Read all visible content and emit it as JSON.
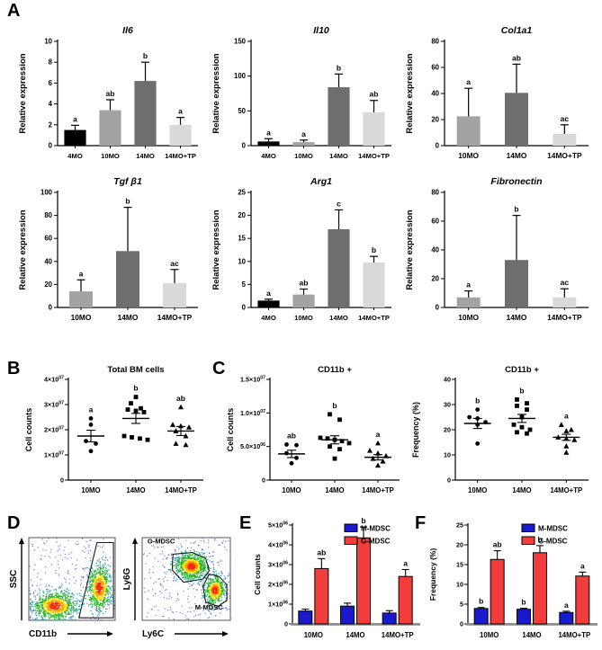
{
  "figure": {
    "panel_labels": [
      "A",
      "B",
      "C",
      "D",
      "E",
      "F"
    ],
    "background": "#ffffff"
  },
  "colors": {
    "bar_black": "#000000",
    "bar_gray": "#a3a3a3",
    "bar_dark": "#6e6e6e",
    "bar_light": "#d9d9d9",
    "mdsc_blue": "#1a1acd",
    "mdsc_red": "#f23d3d",
    "axis": "#000000",
    "baseline_gray": "#8f8f8f"
  },
  "chart_data": [
    {
      "id": "il6",
      "panel": "A",
      "type": "bar",
      "title": "Il6",
      "title_italic": true,
      "ylabel": "Relative expression",
      "categories": [
        "4MO",
        "10MO",
        "14MO",
        "14MO+TP"
      ],
      "values": [
        1.5,
        3.4,
        6.2,
        2.0
      ],
      "errors": [
        0.45,
        1.0,
        1.8,
        0.7
      ],
      "letters": [
        "a",
        "ab",
        "b",
        "a"
      ],
      "ylim": [
        0,
        10
      ],
      "yticks": [
        0,
        2,
        4,
        6,
        8,
        10
      ],
      "bar_colors": [
        "#000000",
        "#a3a3a3",
        "#6e6e6e",
        "#d9d9d9"
      ]
    },
    {
      "id": "il10",
      "panel": "A",
      "type": "bar",
      "title": "Il10",
      "title_italic": true,
      "ylabel": "Relative expression",
      "categories": [
        "4MO",
        "10MO",
        "14MO",
        "14MO+TP"
      ],
      "values": [
        6,
        5,
        84,
        48
      ],
      "errors": [
        4,
        3,
        19,
        17
      ],
      "letters": [
        "a",
        "a",
        "b",
        "ab"
      ],
      "ylim": [
        0,
        150
      ],
      "yticks": [
        0,
        50,
        100,
        150
      ],
      "bar_colors": [
        "#000000",
        "#a3a3a3",
        "#6e6e6e",
        "#d9d9d9"
      ]
    },
    {
      "id": "col1a1",
      "panel": "A",
      "type": "bar",
      "title": "Col1a1",
      "title_italic": true,
      "ylabel": "Relative expression",
      "categories": [
        "10MO",
        "14MO",
        "14MO+TP"
      ],
      "values": [
        22.5,
        40.5,
        9
      ],
      "errors": [
        21.5,
        22,
        7
      ],
      "letters": [
        "a",
        "ab",
        "ac"
      ],
      "ylim": [
        0,
        80
      ],
      "yticks": [
        0,
        20,
        40,
        60,
        80
      ],
      "bar_colors": [
        "#a3a3a3",
        "#6e6e6e",
        "#d9d9d9"
      ]
    },
    {
      "id": "tgfb1",
      "panel": "A",
      "type": "bar",
      "title": "Tgf β1",
      "title_italic": true,
      "ylabel": "Relative expression",
      "categories": [
        "10MO",
        "14MO",
        "14MO+TP"
      ],
      "values": [
        14,
        49,
        21
      ],
      "errors": [
        10,
        38,
        12
      ],
      "letters": [
        "a",
        "b",
        "ac"
      ],
      "ylim": [
        0,
        100
      ],
      "yticks": [
        0,
        20,
        40,
        60,
        80,
        100
      ],
      "bar_colors": [
        "#a3a3a3",
        "#6e6e6e",
        "#d9d9d9"
      ]
    },
    {
      "id": "arg1",
      "panel": "A",
      "type": "bar",
      "title": "Arg1",
      "title_italic": true,
      "ylabel": "Relative expression",
      "categories": [
        "4MO",
        "10MO",
        "14MO",
        "14MO+TP"
      ],
      "values": [
        1.5,
        2.8,
        17,
        9.8
      ],
      "errors": [
        0.3,
        1.2,
        4.2,
        1.3
      ],
      "letters": [
        "a",
        "ab",
        "c",
        "b"
      ],
      "ylim": [
        0,
        25
      ],
      "yticks": [
        0,
        5,
        10,
        15,
        20,
        25
      ],
      "bar_colors": [
        "#000000",
        "#a3a3a3",
        "#6e6e6e",
        "#d9d9d9"
      ]
    },
    {
      "id": "fibronectin",
      "panel": "A",
      "type": "bar",
      "title": "Fibronectin",
      "title_italic": true,
      "ylabel": "Relative expression",
      "categories": [
        "10MO",
        "14MO",
        "14MO+TP"
      ],
      "values": [
        7,
        33,
        7
      ],
      "errors": [
        4.5,
        31,
        6
      ],
      "letters": [
        "a",
        "b",
        "ac"
      ],
      "ylim": [
        0,
        80
      ],
      "yticks": [
        0,
        20,
        40,
        60,
        80
      ],
      "bar_colors": [
        "#a3a3a3",
        "#6e6e6e",
        "#d9d9d9"
      ]
    },
    {
      "id": "total-bm",
      "panel": "B",
      "type": "scatter",
      "title": "Total BM cells",
      "ylabel": "Cell counts",
      "ylim": [
        0,
        4
      ],
      "yticks": [
        0,
        1,
        2,
        3,
        4
      ],
      "ytick_labels": [
        "0",
        "1×10^07",
        "2×10^07",
        "3×10^07",
        "4×10^07"
      ],
      "unit": "×10^07",
      "groups": [
        {
          "label": "10MO",
          "marker": "circle",
          "letter": "a",
          "mean": 1.75,
          "sem": 0.23,
          "points": [
            2.45,
            2.2,
            1.55,
            1.45,
            1.15
          ]
        },
        {
          "label": "14MO",
          "marker": "square",
          "letter": "b",
          "mean": 2.45,
          "sem": 0.2,
          "points": [
            3.3,
            3.05,
            2.85,
            2.8,
            2.75,
            2.7,
            1.75,
            1.7,
            1.65,
            1.6
          ]
        },
        {
          "label": "14MO+TP",
          "marker": "triangle",
          "letter": "ab",
          "mean": 1.95,
          "sem": 0.18,
          "points": [
            2.9,
            2.2,
            2.15,
            2.1,
            1.95,
            1.75,
            1.45,
            1.4
          ]
        }
      ]
    },
    {
      "id": "cd11b-counts",
      "panel": "C",
      "type": "scatter",
      "title": "CD11b +",
      "ylabel": "Cell counts",
      "ylim": [
        0,
        15
      ],
      "yticks": [
        0,
        5,
        10,
        15
      ],
      "ytick_labels": [
        "0",
        "5.0×10^06",
        "1.0×10^07",
        "1.5×10^07"
      ],
      "unit": "×10^06",
      "groups": [
        {
          "label": "10MO",
          "marker": "circle",
          "letter": "ab",
          "mean": 3.9,
          "sem": 0.55,
          "points": [
            5.3,
            5.2,
            4.0,
            3.3,
            2.5
          ]
        },
        {
          "label": "14MO",
          "marker": "square",
          "letter": "b",
          "mean": 6.0,
          "sem": 0.6,
          "points": [
            9.8,
            9.0,
            6.3,
            6.2,
            6.0,
            5.8,
            5.5,
            5.0,
            4.6,
            3.2
          ]
        },
        {
          "label": "14MO+TP",
          "marker": "triangle",
          "letter": "a",
          "mean": 3.4,
          "sem": 0.4,
          "points": [
            5.5,
            4.4,
            4.0,
            3.6,
            3.2,
            2.8,
            2.2
          ]
        }
      ]
    },
    {
      "id": "cd11b-freq",
      "panel": "C",
      "type": "scatter",
      "title": "CD11b +",
      "ylabel": "Frequency (%)",
      "ylim": [
        0,
        40
      ],
      "yticks": [
        0,
        10,
        20,
        30,
        40
      ],
      "ytick_labels": [
        "0",
        "10",
        "20",
        "30",
        "40"
      ],
      "unit": "%",
      "groups": [
        {
          "label": "10MO",
          "marker": "circle",
          "letter": "b",
          "mean": 22.5,
          "sem": 2.0,
          "points": [
            28,
            25,
            24.5,
            23,
            22,
            14.5
          ]
        },
        {
          "label": "14MO",
          "marker": "square",
          "letter": "b",
          "mean": 24.5,
          "sem": 1.6,
          "points": [
            32,
            30.5,
            29.5,
            28,
            25,
            22,
            21,
            20,
            19,
            18.5
          ]
        },
        {
          "label": "14MO+TP",
          "marker": "triangle",
          "letter": "a",
          "mean": 17,
          "sem": 1.2,
          "points": [
            22,
            20,
            19.5,
            17,
            16.5,
            16,
            13.5,
            11
          ]
        }
      ]
    },
    {
      "id": "flow-cd11b",
      "panel": "D",
      "type": "flow",
      "xlabel": "CD11b",
      "ylabel": "SSC",
      "clusters": [
        {
          "cx": 0.3,
          "cy": 0.18,
          "sx": 0.13,
          "sy": 0.09,
          "n": 900
        },
        {
          "cx": 0.81,
          "cy": 0.4,
          "sx": 0.07,
          "sy": 0.14,
          "n": 700
        }
      ],
      "noise": 220,
      "gates": [
        {
          "label": "",
          "label_pos": [
            0,
            0
          ],
          "points": [
            [
              0.58,
              0.03
            ],
            [
              0.79,
              0.94
            ],
            [
              0.98,
              0.94
            ],
            [
              0.98,
              0.03
            ]
          ]
        }
      ]
    },
    {
      "id": "flow-ly6",
      "panel": "D",
      "type": "flow",
      "xlabel": "Ly6C",
      "ylabel": "Ly6G",
      "clusters": [
        {
          "cx": 0.55,
          "cy": 0.66,
          "sx": 0.09,
          "sy": 0.08,
          "n": 850
        },
        {
          "cx": 0.82,
          "cy": 0.37,
          "sx": 0.06,
          "sy": 0.09,
          "n": 500
        }
      ],
      "noise": 260,
      "gates": [
        {
          "label": "G-MDSC",
          "label_pos": [
            0.06,
            0.93
          ],
          "points": [
            [
              0.35,
              0.8
            ],
            [
              0.57,
              0.82
            ],
            [
              0.72,
              0.75
            ],
            [
              0.76,
              0.6
            ],
            [
              0.69,
              0.5
            ],
            [
              0.47,
              0.46
            ],
            [
              0.34,
              0.61
            ]
          ]
        },
        {
          "label": "M-MDSC",
          "label_pos": [
            0.6,
            0.13
          ],
          "points": [
            [
              0.76,
              0.56
            ],
            [
              0.87,
              0.53
            ],
            [
              0.96,
              0.43
            ],
            [
              0.96,
              0.24
            ],
            [
              0.86,
              0.17
            ],
            [
              0.72,
              0.22
            ],
            [
              0.69,
              0.41
            ]
          ]
        }
      ]
    },
    {
      "id": "mdsc-counts",
      "panel": "E",
      "type": "grouped_bar",
      "ylabel": "Cell counts",
      "categories": [
        "10MO",
        "14MO",
        "14MO+TP"
      ],
      "ylim": [
        0,
        5
      ],
      "yticks": [
        0,
        1,
        2,
        3,
        4,
        5
      ],
      "ytick_labels": [
        "0",
        "1×10^06",
        "2×10^06",
        "3×10^06",
        "4×10^06",
        "5×10^06"
      ],
      "unit": "×10^06",
      "series": [
        {
          "name": "M-MDSC",
          "color": "#1a1acd",
          "values": [
            0.65,
            0.9,
            0.55
          ],
          "errors": [
            0.1,
            0.15,
            0.12
          ],
          "letters": [
            "",
            "",
            ""
          ]
        },
        {
          "name": "G-MDSC",
          "color": "#f23d3d",
          "values": [
            2.8,
            4.35,
            2.4
          ],
          "errors": [
            0.5,
            0.55,
            0.35
          ],
          "letters": [
            "ab",
            "b",
            "a"
          ]
        }
      ],
      "legend": [
        "M-MDSC",
        "G-MDSC"
      ]
    },
    {
      "id": "mdsc-freq",
      "panel": "F",
      "type": "grouped_bar",
      "ylabel": "Frequency (%)",
      "categories": [
        "10MO",
        "14MO",
        "14MO+TP"
      ],
      "ylim": [
        0,
        25
      ],
      "yticks": [
        0,
        5,
        10,
        15,
        20,
        25
      ],
      "ytick_labels": [
        "0",
        "5",
        "10",
        "15",
        "20",
        "25"
      ],
      "unit": "%",
      "series": [
        {
          "name": "M-MDSC",
          "color": "#1a1acd",
          "values": [
            3.9,
            3.7,
            2.9
          ],
          "errors": [
            0.25,
            0.25,
            0.3
          ],
          "letters": [
            "b",
            "b",
            "a"
          ]
        },
        {
          "name": "G-MDSC",
          "color": "#f23d3d",
          "values": [
            16.3,
            18.0,
            12.1
          ],
          "errors": [
            2.2,
            1.8,
            1.0
          ],
          "letters": [
            "ab",
            "b",
            "a"
          ]
        }
      ],
      "legend": [
        "M-MDSC",
        "G-MDSC"
      ]
    }
  ]
}
